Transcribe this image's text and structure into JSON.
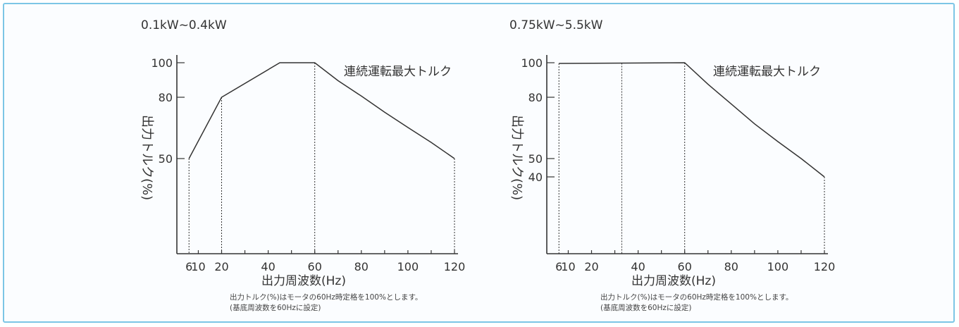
{
  "chart_data": [
    {
      "type": "line",
      "title": "0.1kW~0.4kW",
      "xlabel": "出力周波数(Hz)",
      "ylabel": "出力トルク(%)",
      "x_ticks": [
        6,
        10,
        20,
        40,
        60,
        80,
        100,
        120
      ],
      "y_ticks": [
        50,
        80,
        100
      ],
      "xlim": [
        0,
        120
      ],
      "ylim": [
        0,
        100
      ],
      "series": [
        {
          "name": "連続運転最大トルク",
          "points": [
            [
              6,
              50
            ],
            [
              20,
              80
            ],
            [
              45,
              100
            ],
            [
              60,
              100
            ],
            [
              70,
              89.6
            ],
            [
              80,
              80.7
            ],
            [
              90,
              72.7
            ],
            [
              100,
              65.2
            ],
            [
              110,
              57.9
            ],
            [
              120,
              50
            ]
          ]
        }
      ],
      "dashed_guides_x": [
        6,
        20,
        60,
        120
      ],
      "notes": [
        "出力トルク(%)はモータの60Hz時定格を100%とします。",
        "(基底周波数を60Hzに設定)"
      ]
    },
    {
      "type": "line",
      "title": "0.75kW~5.5kW",
      "xlabel": "出力周波数(Hz)",
      "ylabel": "出力トルク(%)",
      "x_ticks": [
        6,
        10,
        20,
        40,
        60,
        80,
        100,
        120
      ],
      "y_ticks": [
        40,
        50,
        80,
        100
      ],
      "xlim": [
        0,
        120
      ],
      "ylim": [
        0,
        100
      ],
      "series": [
        {
          "name": "連続運転最大トルク",
          "points": [
            [
              6,
              99.6
            ],
            [
              60,
              100
            ],
            [
              70,
              87.5
            ],
            [
              80,
              76.7
            ],
            [
              90,
              67
            ],
            [
              100,
              58.3
            ],
            [
              110,
              50
            ],
            [
              120,
              40
            ]
          ]
        }
      ],
      "dashed_guides_x": [
        6,
        33,
        60,
        120
      ],
      "notes": [
        "出力トルク(%)はモータの60Hz時定格を100%とします。",
        "(基底周波数を60Hzに設定)"
      ]
    }
  ]
}
